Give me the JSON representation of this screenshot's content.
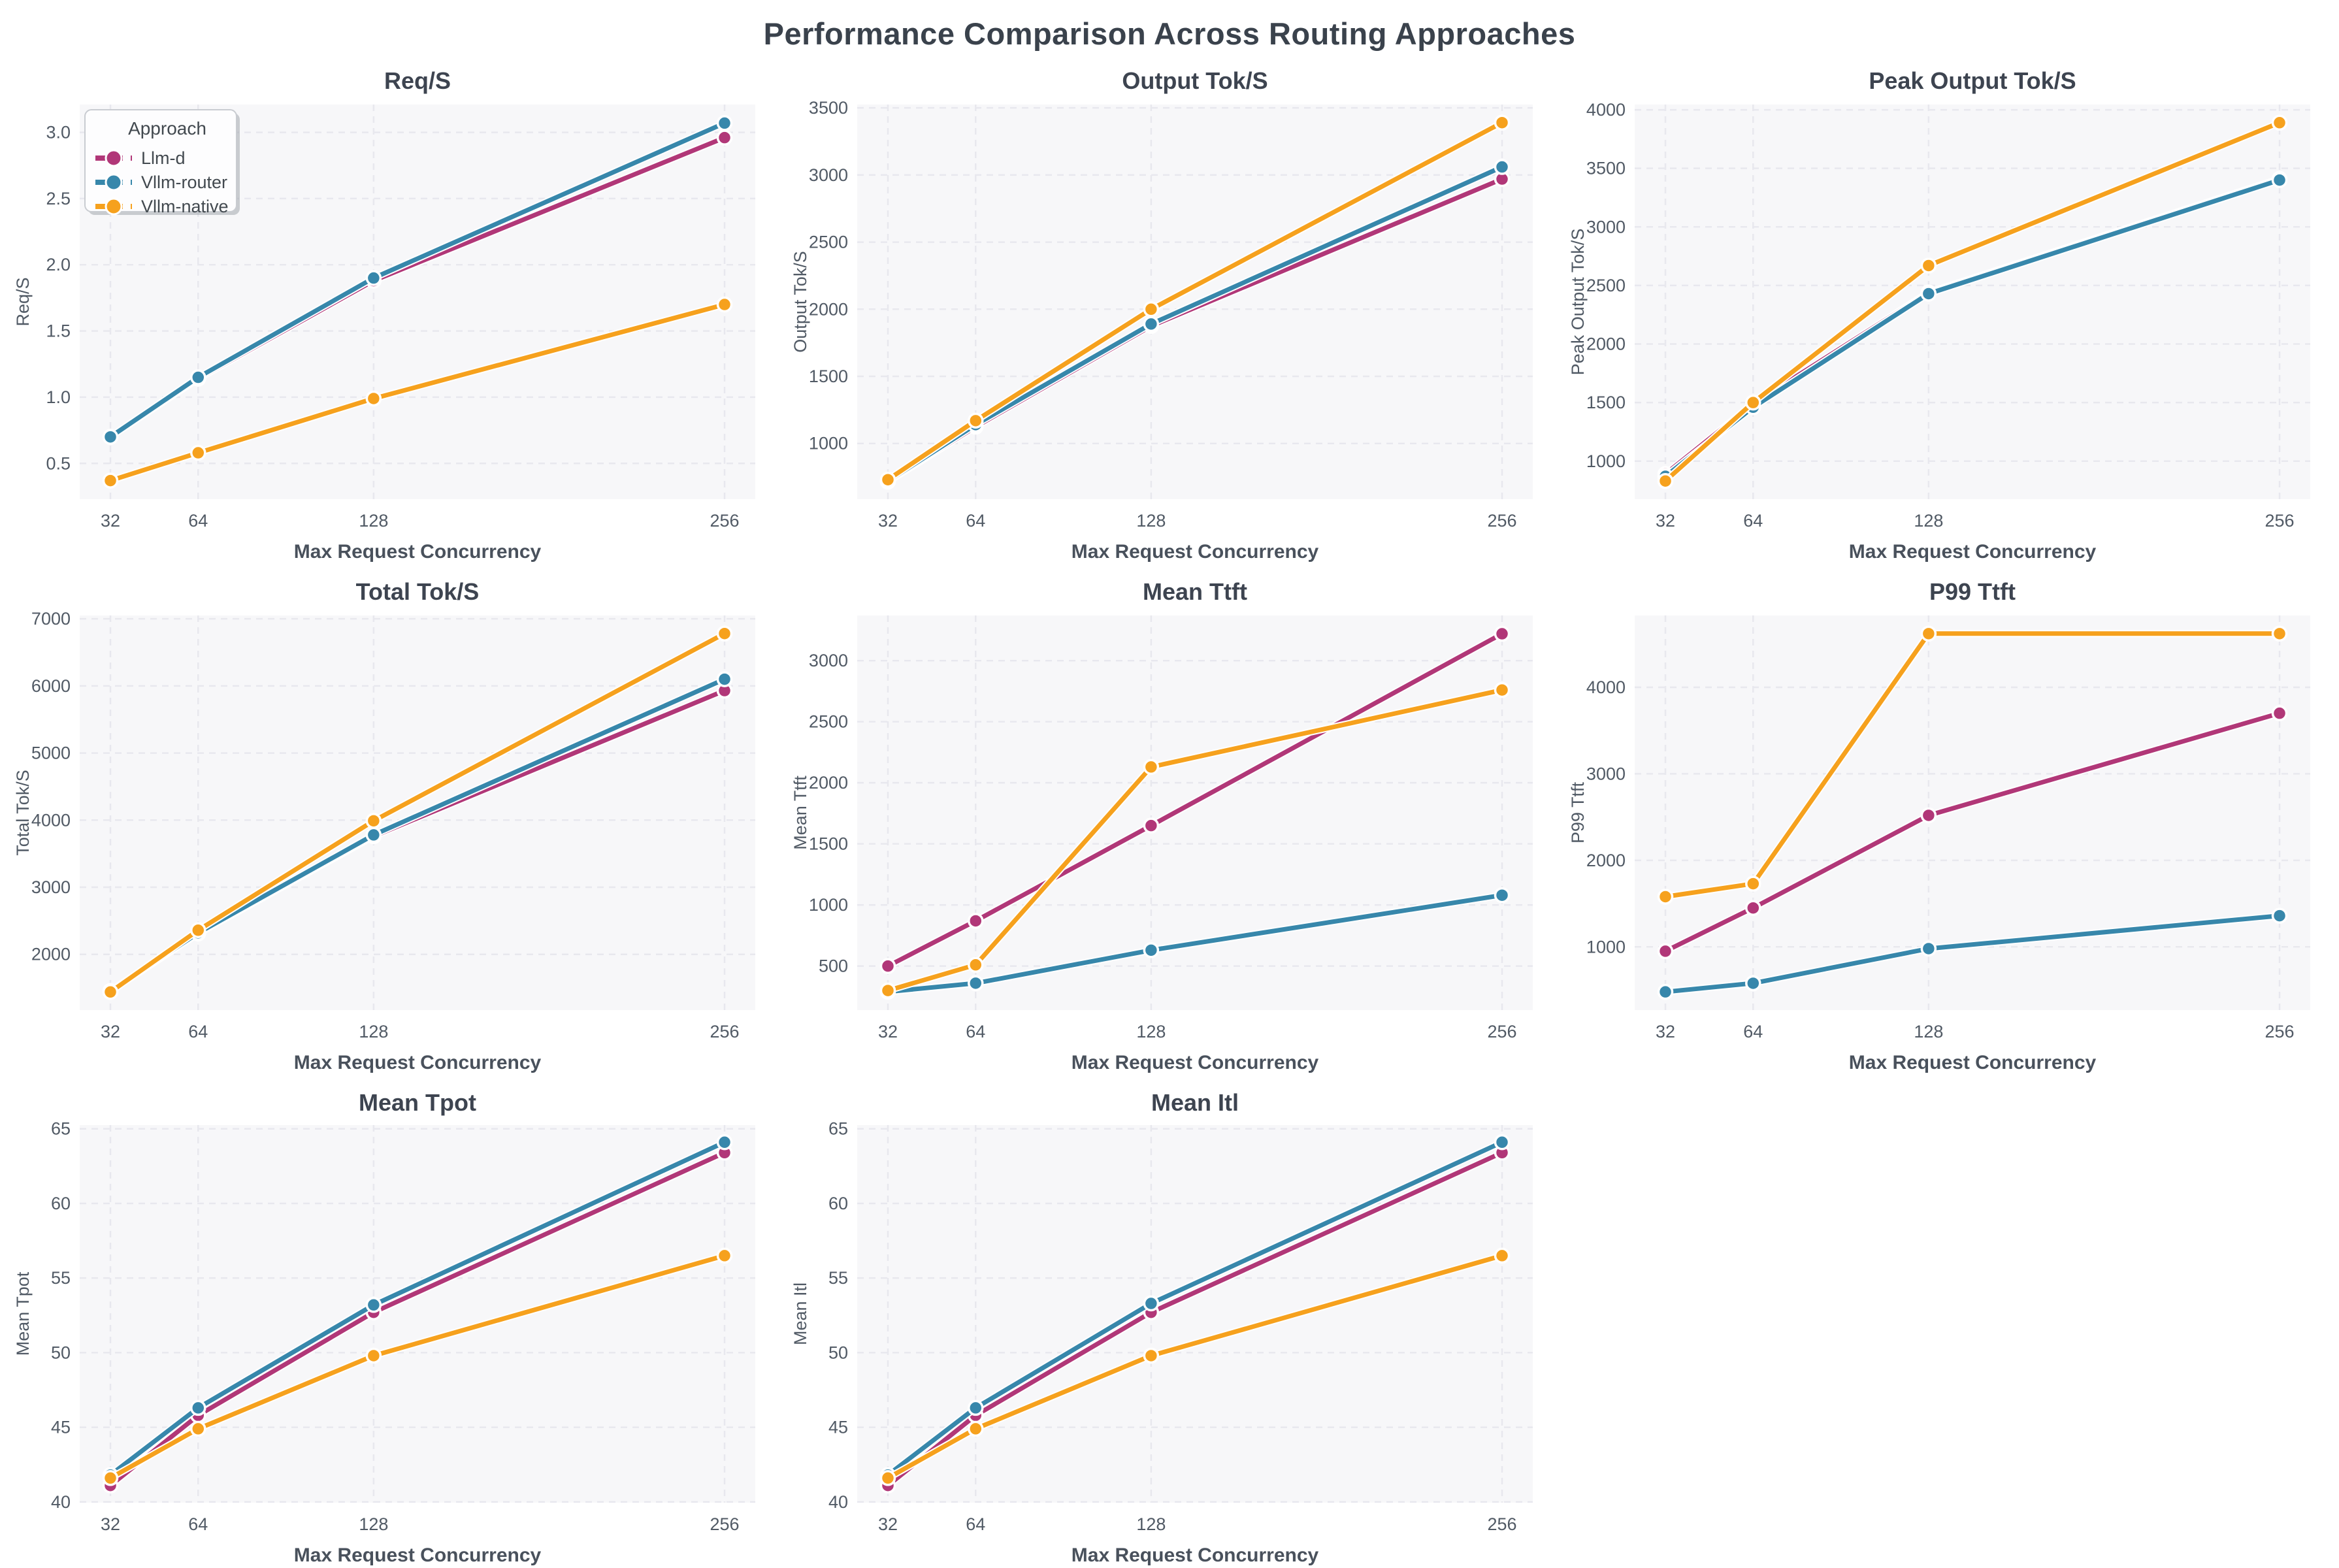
{
  "page_title": "Performance Comparison Across Routing Approaches",
  "colors": {
    "plot_bg": "#f7f7f9",
    "grid": "#e8e8ee",
    "title": "#3d4450",
    "xlabel": "#49515c",
    "tick": "#515a65",
    "legend_text": "#42494f",
    "legend_border": "#c9ccd1",
    "legend_bg": "#fdfdfe",
    "legend_shadow": "#9aa0a6",
    "halo": "#ffffff"
  },
  "legend": {
    "title": "Approach",
    "entries": [
      "Llm-d",
      "Vllm-router",
      "Vllm-native"
    ]
  },
  "chart_data": {
    "type": "line",
    "suptitle": "Performance Comparison Across Routing Approaches",
    "x_label": "Max Request Concurrency",
    "x_ticks": [
      32,
      64,
      128,
      256
    ],
    "x_tick_labels": [
      "32",
      "64",
      "128",
      "256"
    ],
    "x_scale": "linear",
    "xlim": [
      20.8,
      267.2
    ],
    "grid": "dashed",
    "legend_position": "upper-left-first-subplot-only",
    "series_names": [
      "Llm-d",
      "Vllm-router",
      "Vllm-native"
    ],
    "series_colors": {
      "Llm-d": "#b13778",
      "Vllm-router": "#3787ab",
      "Vllm-native": "#f6a11d"
    },
    "subplots": [
      {
        "title": "Req/S",
        "ylabel": "Req/S",
        "yticks": [
          0.5,
          1.0,
          1.5,
          2.0,
          2.5,
          3.0
        ],
        "ytick_labels": [
          "0.5",
          "1.0",
          "1.5",
          "2.0",
          "2.5",
          "3.0"
        ],
        "ylim": [
          0.23,
          3.21
        ],
        "series": [
          {
            "name": "Llm-d",
            "values": [
              0.7,
              1.14,
              1.88,
              2.96
            ]
          },
          {
            "name": "Vllm-router",
            "values": [
              0.7,
              1.15,
              1.9,
              3.07
            ]
          },
          {
            "name": "Vllm-native",
            "values": [
              0.37,
              0.58,
              0.99,
              1.7
            ]
          }
        ]
      },
      {
        "title": "Output Tok/S",
        "ylabel": "Output Tok/S",
        "yticks": [
          1000,
          1500,
          2000,
          2500,
          3000,
          3500
        ],
        "ytick_labels": [
          "1000",
          "1500",
          "2000",
          "2500",
          "3000",
          "3500"
        ],
        "ylim": [
          585,
          3525
        ],
        "series": [
          {
            "name": "Llm-d",
            "values": [
              715,
              1125,
              1875,
              2970
            ]
          },
          {
            "name": "Vllm-router",
            "values": [
              720,
              1140,
              1890,
              3060
            ]
          },
          {
            "name": "Vllm-native",
            "values": [
              730,
              1170,
              2000,
              3390
            ]
          }
        ]
      },
      {
        "title": "Peak Output Tok/S",
        "ylabel": "Peak Output Tok/S",
        "yticks": [
          1000,
          1500,
          2000,
          2500,
          3000,
          3500,
          4000
        ],
        "ytick_labels": [
          "1000",
          "1500",
          "2000",
          "2500",
          "3000",
          "3500",
          "4000"
        ],
        "ylim": [
          675,
          4045
        ],
        "series": [
          {
            "name": "Llm-d",
            "values": [
              890,
              1490,
              2440,
              3410
            ]
          },
          {
            "name": "Vllm-router",
            "values": [
              870,
              1460,
              2430,
              3400
            ]
          },
          {
            "name": "Vllm-native",
            "values": [
              830,
              1500,
              2670,
              3890
            ]
          }
        ]
      },
      {
        "title": "Total Tok/S",
        "ylabel": "Total Tok/S",
        "yticks": [
          2000,
          3000,
          4000,
          5000,
          6000,
          7000
        ],
        "ytick_labels": [
          "2000",
          "3000",
          "4000",
          "5000",
          "6000",
          "7000"
        ],
        "ylim": [
          1170,
          7050
        ],
        "series": [
          {
            "name": "Llm-d",
            "values": [
              1450,
              2310,
              3760,
              5930
            ]
          },
          {
            "name": "Vllm-router",
            "values": [
              1455,
              2320,
              3780,
              6100
            ]
          },
          {
            "name": "Vllm-native",
            "values": [
              1440,
              2360,
              3990,
              6780
            ]
          }
        ]
      },
      {
        "title": "Mean Ttft",
        "ylabel": "Mean Ttft",
        "yticks": [
          500,
          1000,
          1500,
          2000,
          2500,
          3000
        ],
        "ytick_labels": [
          "500",
          "1000",
          "1500",
          "2000",
          "2500",
          "3000"
        ],
        "ylim": [
          140,
          3370
        ],
        "series": [
          {
            "name": "Llm-d",
            "values": [
              500,
              870,
              1650,
              3220
            ]
          },
          {
            "name": "Vllm-router",
            "values": [
              290,
              360,
              630,
              1080
            ]
          },
          {
            "name": "Vllm-native",
            "values": [
              300,
              510,
              2130,
              2760
            ]
          }
        ]
      },
      {
        "title": "P99 Ttft",
        "ylabel": "P99 Ttft",
        "yticks": [
          1000,
          2000,
          3000,
          4000
        ],
        "ytick_labels": [
          "1000",
          "2000",
          "3000",
          "4000"
        ],
        "ylim": [
          270,
          4830
        ],
        "series": [
          {
            "name": "Llm-d",
            "values": [
              950,
              1450,
              2520,
              3700
            ]
          },
          {
            "name": "Vllm-router",
            "values": [
              480,
              580,
              980,
              1360
            ]
          },
          {
            "name": "Vllm-native",
            "values": [
              1580,
              1730,
              4620,
              4620
            ]
          }
        ]
      },
      {
        "title": "Mean Tpot",
        "ylabel": "Mean Tpot",
        "yticks": [
          40,
          45,
          50,
          55,
          60,
          65
        ],
        "ytick_labels": [
          "40",
          "45",
          "50",
          "55",
          "60",
          "65"
        ],
        "ylim": [
          39.95,
          65.25
        ],
        "series": [
          {
            "name": "Llm-d",
            "values": [
              41.1,
              45.8,
              52.7,
              63.4
            ]
          },
          {
            "name": "Vllm-router",
            "values": [
              41.8,
              46.3,
              53.2,
              64.1
            ]
          },
          {
            "name": "Vllm-native",
            "values": [
              41.6,
              44.9,
              49.8,
              56.5
            ]
          }
        ]
      },
      {
        "title": "Mean Itl",
        "ylabel": "Mean Itl",
        "yticks": [
          40,
          45,
          50,
          55,
          60,
          65
        ],
        "ytick_labels": [
          "40",
          "45",
          "50",
          "55",
          "60",
          "65"
        ],
        "ylim": [
          39.95,
          65.25
        ],
        "series": [
          {
            "name": "Llm-d",
            "values": [
              41.1,
              45.8,
              52.7,
              63.4
            ]
          },
          {
            "name": "Vllm-router",
            "values": [
              41.8,
              46.3,
              53.3,
              64.1
            ]
          },
          {
            "name": "Vllm-native",
            "values": [
              41.6,
              44.9,
              49.8,
              56.5
            ]
          }
        ]
      }
    ]
  }
}
